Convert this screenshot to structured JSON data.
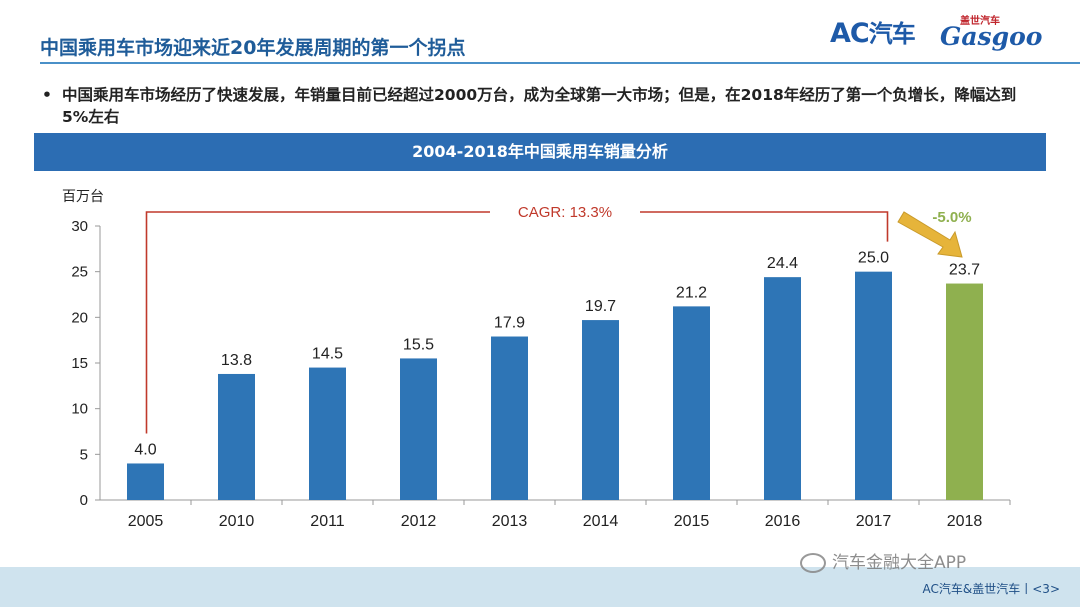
{
  "header": {
    "title": "中国乘用车市场迎来近20年发展周期的第一个拐点",
    "logo_ac_main": "AC",
    "logo_ac_cn": "汽车",
    "logo_gasgoo_cn": "盖世汽车",
    "logo_gasgoo_en": "Gasgoo"
  },
  "bullet": {
    "marker": "•",
    "text": "中国乘用车市场经历了快速发展，年销量目前已经超过2000万台，成为全球第一大市场；但是，在2018年经历了第一个负增长，降幅达到5%左右"
  },
  "banner": {
    "title": "2004-2018年中国乘用车销量分析"
  },
  "footer": {
    "text": "AC汽车&盖世汽车丨<3>",
    "wechat": "汽车金融大全APP"
  },
  "colors": {
    "bar_primary": "#2e75b6",
    "bar_highlight": "#8fb04f",
    "annotation_red": "#c0392b",
    "arrow": "#e6b43a",
    "change_label": "#8fb04f"
  },
  "chart_data": {
    "type": "bar",
    "ylabel": "百万台",
    "categories": [
      "2005",
      "2010",
      "2011",
      "2012",
      "2013",
      "2014",
      "2015",
      "2016",
      "2017",
      "2018"
    ],
    "values": [
      4.0,
      13.8,
      14.5,
      15.5,
      17.9,
      19.7,
      21.2,
      24.4,
      25.0,
      23.7
    ],
    "value_labels": [
      "4.0",
      "13.8",
      "14.5",
      "15.5",
      "17.9",
      "19.7",
      "21.2",
      "24.4",
      "25.0",
      "23.7"
    ],
    "highlight_category": "2018",
    "ylim": [
      0,
      30
    ],
    "yticks": [
      0,
      5,
      10,
      15,
      20,
      25,
      30
    ],
    "grid": false,
    "annotations": {
      "cagr": "CAGR: 13.3%",
      "change": "-5.0%"
    }
  }
}
